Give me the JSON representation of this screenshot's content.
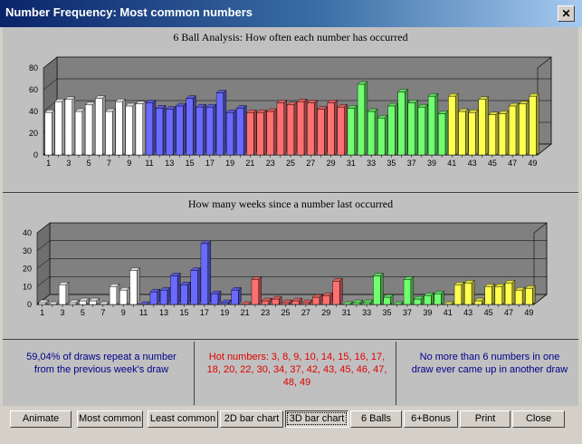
{
  "window": {
    "title": "Number Frequency: Most common numbers",
    "close_glyph": "✕"
  },
  "chart1": {
    "title": "6 Ball Analysis: How often each number has occurred"
  },
  "chart2": {
    "title": "How many weeks since a number last occurred"
  },
  "chart_data": [
    {
      "type": "bar",
      "title": "6 Ball Analysis: How often each number has occurred",
      "xlabel": "",
      "ylabel": "",
      "ylim": [
        0,
        80
      ],
      "yticks": [
        0,
        20,
        40,
        60,
        80
      ],
      "x_tick_labels": [
        "1",
        "3",
        "5",
        "7",
        "9",
        "11",
        "13",
        "15",
        "17",
        "19",
        "21",
        "23",
        "25",
        "27",
        "29",
        "31",
        "33",
        "35",
        "37",
        "39",
        "41",
        "43",
        "45",
        "47",
        "49"
      ],
      "categories": [
        1,
        2,
        3,
        4,
        5,
        6,
        7,
        8,
        9,
        10,
        11,
        12,
        13,
        14,
        15,
        16,
        17,
        18,
        19,
        20,
        21,
        22,
        23,
        24,
        25,
        26,
        27,
        28,
        29,
        30,
        31,
        32,
        33,
        34,
        35,
        36,
        37,
        38,
        39,
        40,
        41,
        42,
        43,
        44,
        45,
        46,
        47,
        48,
        49
      ],
      "values": [
        39,
        49,
        51,
        40,
        46,
        52,
        40,
        49,
        45,
        47,
        48,
        43,
        42,
        45,
        52,
        44,
        44,
        57,
        39,
        43,
        39,
        39,
        40,
        48,
        46,
        49,
        48,
        42,
        48,
        44,
        43,
        65,
        40,
        34,
        45,
        58,
        48,
        44,
        54,
        38,
        54,
        40,
        39,
        51,
        37,
        38,
        45,
        47,
        54
      ],
      "colors": [
        "#ffffff",
        "#6a6aff",
        "#ff7070",
        "#70ff70",
        "#ffff50"
      ],
      "grid": true,
      "style": "3d"
    },
    {
      "type": "bar",
      "title": "How many weeks since a number last occurred",
      "xlabel": "",
      "ylabel": "",
      "ylim": [
        0,
        40
      ],
      "yticks": [
        0,
        10,
        20,
        30,
        40
      ],
      "x_tick_labels": [
        "1",
        "3",
        "5",
        "7",
        "9",
        "11",
        "13",
        "15",
        "17",
        "19",
        "21",
        "23",
        "25",
        "27",
        "29",
        "31",
        "33",
        "35",
        "37",
        "39",
        "41",
        "43",
        "45",
        "47",
        "49"
      ],
      "categories": [
        1,
        2,
        3,
        4,
        5,
        6,
        7,
        8,
        9,
        10,
        11,
        12,
        13,
        14,
        15,
        16,
        17,
        18,
        19,
        20,
        21,
        22,
        23,
        24,
        25,
        26,
        27,
        28,
        29,
        30,
        31,
        32,
        33,
        34,
        35,
        36,
        37,
        38,
        39,
        40,
        41,
        42,
        43,
        44,
        45,
        46,
        47,
        48,
        49
      ],
      "values": [
        1,
        0,
        11,
        1,
        2,
        2,
        0,
        10,
        8,
        19,
        0,
        7,
        8,
        16,
        11,
        19,
        34,
        6,
        1,
        8,
        0,
        14,
        2,
        3,
        1,
        2,
        1,
        4,
        5,
        13,
        0,
        1,
        1,
        16,
        4,
        0,
        14,
        3,
        5,
        6,
        0,
        11,
        12,
        2,
        10,
        10,
        12,
        8,
        9
      ],
      "colors": [
        "#ffffff",
        "#6a6aff",
        "#ff7070",
        "#70ff70",
        "#ffff50"
      ],
      "grid": true,
      "style": "3d"
    }
  ],
  "info": {
    "left": "59,04% of draws repeat a number from the previous week's draw",
    "middle": "Hot numbers: 3, 8, 9, 10, 14, 15, 16, 17, 18, 20, 22, 30, 34, 37, 42, 43, 45, 46, 47, 48, 49",
    "right": "No more than 6 numbers in one draw ever came up in another draw"
  },
  "buttons": {
    "animate": "Animate",
    "most_common": "Most common",
    "least_common": "Least common",
    "bar2d": "2D bar chart",
    "bar3d": "3D bar chart",
    "six_balls": "6 Balls",
    "six_bonus": "6+Bonus",
    "print": "Print",
    "close": "Close"
  }
}
